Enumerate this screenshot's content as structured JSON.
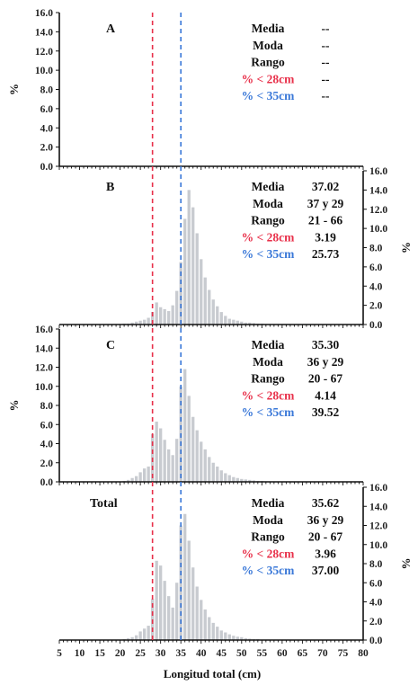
{
  "chart_data": {
    "type": "bar",
    "xlabel": "Longitud total (cm)",
    "ylabel": "%",
    "xlim": [
      5,
      80
    ],
    "ylim": [
      0,
      16
    ],
    "x_ticks": [
      "5",
      "10",
      "15",
      "20",
      "25",
      "30",
      "35",
      "40",
      "45",
      "50",
      "55",
      "60",
      "65",
      "70",
      "75",
      "80"
    ],
    "y_ticks": [
      "0.0",
      "2.0",
      "4.0",
      "6.0",
      "8.0",
      "10.0",
      "12.0",
      "14.0",
      "16.0"
    ],
    "reference_lines": [
      {
        "x": 28,
        "color": "#e8304a"
      },
      {
        "x": 35,
        "color": "#3a78d8"
      }
    ],
    "stat_labels": [
      "Media",
      "Moda",
      "Rango",
      "% < 28cm",
      "% < 35cm"
    ],
    "stat_colors": [
      "#111111",
      "#111111",
      "#111111",
      "#e8304a",
      "#3a78d8"
    ],
    "bar_color": "#c8cbd0",
    "panels": [
      {
        "label": "A",
        "y_axis_side": "left",
        "stat_values": [
          "--",
          "--",
          "--",
          "--",
          "--"
        ],
        "bins": [],
        "values": []
      },
      {
        "label": "B",
        "y_axis_side": "right",
        "stat_values": [
          "37.02",
          "37 y 29",
          "21 - 66",
          "3.19",
          "25.73"
        ],
        "bins": [
          21,
          22,
          23,
          24,
          25,
          26,
          27,
          28,
          29,
          30,
          31,
          32,
          33,
          34,
          35,
          36,
          37,
          38,
          39,
          40,
          41,
          42,
          43,
          44,
          45,
          46,
          47,
          48,
          49,
          50,
          51,
          52,
          53,
          54,
          55,
          56,
          57,
          58,
          59,
          60,
          61,
          62,
          63,
          64,
          65,
          66
        ],
        "values": [
          0.1,
          0.1,
          0.2,
          0.3,
          0.4,
          0.5,
          0.7,
          1.3,
          2.3,
          1.8,
          1.6,
          1.4,
          2.0,
          3.5,
          6.5,
          11.0,
          14.0,
          12.2,
          9.5,
          6.8,
          4.9,
          3.6,
          2.6,
          1.9,
          1.3,
          0.9,
          0.6,
          0.5,
          0.4,
          0.3,
          0.2,
          0.2,
          0.15,
          0.1,
          0.1,
          0.05,
          0.05,
          0.05,
          0.05,
          0.05,
          0.05,
          0.05,
          0.05,
          0.05,
          0.05,
          0.05
        ]
      },
      {
        "label": "C",
        "y_axis_side": "left",
        "stat_values": [
          "35.30",
          "36 y 29",
          "20 - 67",
          "4.14",
          "39.52"
        ],
        "bins": [
          20,
          21,
          22,
          23,
          24,
          25,
          26,
          27,
          28,
          29,
          30,
          31,
          32,
          33,
          34,
          35,
          36,
          37,
          38,
          39,
          40,
          41,
          42,
          43,
          44,
          45,
          46,
          47,
          48,
          49,
          50,
          51,
          52,
          53,
          54,
          55,
          56,
          57,
          58,
          59,
          60,
          61,
          62,
          63,
          64,
          65,
          66,
          67
        ],
        "values": [
          0.05,
          0.1,
          0.2,
          0.4,
          0.6,
          1.0,
          1.4,
          1.6,
          5.0,
          6.3,
          5.6,
          4.4,
          3.4,
          2.8,
          4.5,
          10.0,
          11.8,
          9.0,
          6.8,
          5.4,
          4.2,
          3.4,
          2.6,
          2.0,
          1.6,
          1.2,
          0.9,
          0.7,
          0.5,
          0.4,
          0.3,
          0.25,
          0.2,
          0.15,
          0.1,
          0.1,
          0.05,
          0.05,
          0.05,
          0.05,
          0.05,
          0.05,
          0.05,
          0.05,
          0.05,
          0.05,
          0.05,
          0.05
        ]
      },
      {
        "label": "Total",
        "y_axis_side": "right",
        "stat_values": [
          "35.62",
          "36 y 29",
          "20 - 67",
          "3.96",
          "37.00"
        ],
        "bins": [
          20,
          21,
          22,
          23,
          24,
          25,
          26,
          27,
          28,
          29,
          30,
          31,
          32,
          33,
          34,
          35,
          36,
          37,
          38,
          39,
          40,
          41,
          42,
          43,
          44,
          45,
          46,
          47,
          48,
          49,
          50,
          51,
          52,
          53,
          54,
          55,
          56,
          57,
          58,
          59,
          60,
          61,
          62,
          63,
          64,
          65,
          66,
          67
        ],
        "values": [
          0.05,
          0.1,
          0.2,
          0.3,
          0.5,
          0.9,
          1.2,
          1.5,
          4.3,
          8.3,
          7.8,
          6.2,
          4.6,
          3.4,
          6.0,
          12.0,
          13.2,
          10.4,
          7.6,
          5.6,
          4.2,
          3.2,
          2.4,
          1.8,
          1.4,
          1.0,
          0.8,
          0.6,
          0.45,
          0.35,
          0.3,
          0.2,
          0.15,
          0.1,
          0.1,
          0.05,
          0.05,
          0.05,
          0.05,
          0.05,
          0.05,
          0.05,
          0.05,
          0.05,
          0.05,
          0.05,
          0.05,
          0.05
        ]
      }
    ]
  }
}
